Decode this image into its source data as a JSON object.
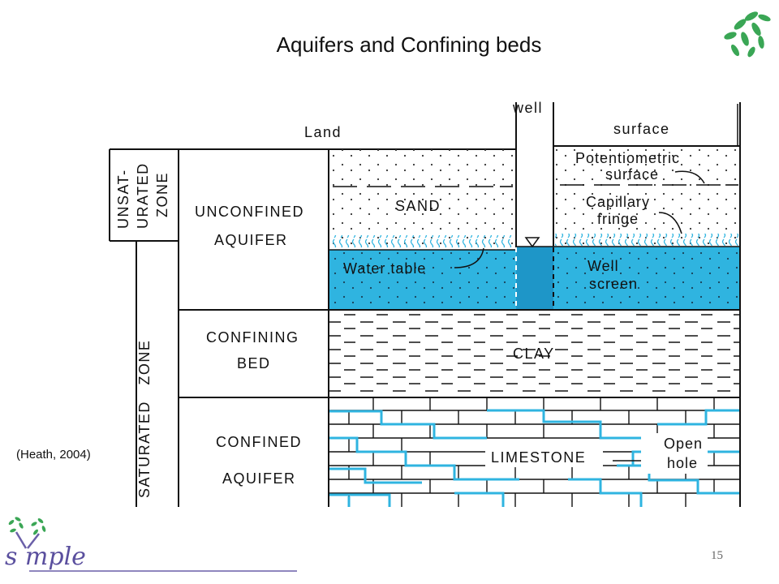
{
  "slide": {
    "title": "Aquifers and Confining beds",
    "citation": "(Heath, 2004)",
    "page_number": "15",
    "brand": "symple",
    "colors": {
      "water": "#2fb4e0",
      "well_water": "#1e96c8",
      "brick": "#2fb4e0",
      "ink": "#111111",
      "leaf": "#3aa655",
      "brand_line": "#6a5fa8"
    }
  },
  "diagram": {
    "well_label": "well",
    "land_label": "Land",
    "surface_label": "surface",
    "zones": {
      "unsat": [
        "UNSAT-",
        "URATED",
        "ZONE"
      ],
      "sat": "SATURATED   ZONE"
    },
    "units": {
      "unconfined": [
        "UNCONFINED",
        "AQUIFER"
      ],
      "confining": [
        "CONFINING",
        "BED"
      ],
      "confined": [
        "CONFINED",
        "AQUIFER"
      ]
    },
    "layers": {
      "sand": "SAND",
      "clay": "CLAY",
      "limestone": "LIMESTONE"
    },
    "annotations": {
      "potentiometric": [
        "Potentiometric",
        "surface"
      ],
      "capillary": [
        "Capillary",
        "fringe"
      ],
      "water_table": "Water table",
      "well_screen": [
        "Well",
        "screen"
      ],
      "open_hole": [
        "Open",
        "hole"
      ]
    }
  }
}
